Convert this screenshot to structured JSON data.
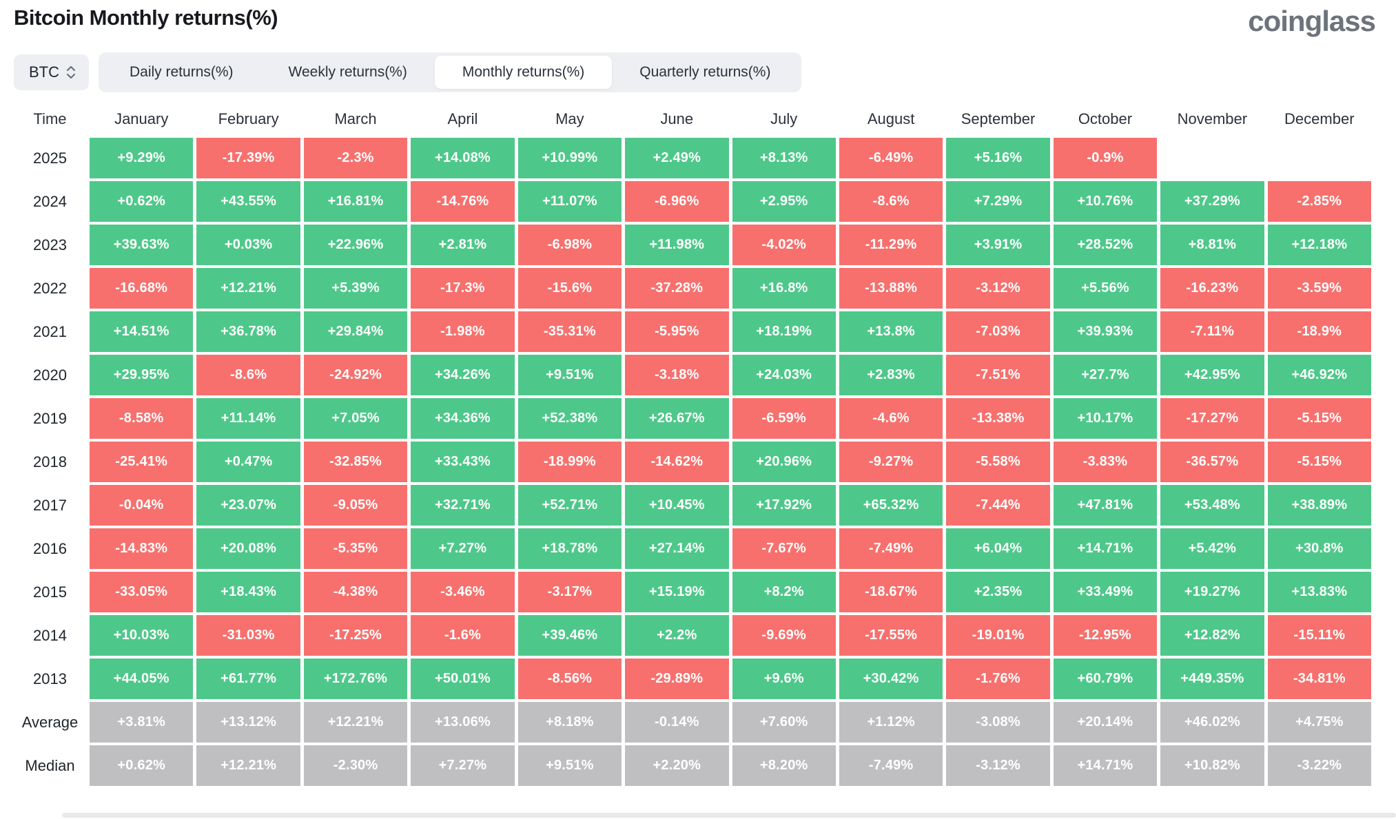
{
  "header": {
    "title": "Bitcoin Monthly returns(%)",
    "logo": "coinglass"
  },
  "controls": {
    "coin_selector": {
      "value": "BTC",
      "icon": "chevron-up-down-icon"
    },
    "tabs": [
      {
        "label": "Daily returns(%)",
        "selected": false
      },
      {
        "label": "Weekly returns(%)",
        "selected": false
      },
      {
        "label": "Monthly returns(%)",
        "selected": true
      },
      {
        "label": "Quarterly returns(%)",
        "selected": false
      }
    ]
  },
  "colors": {
    "positive": "#4ec88a",
    "negative": "#f7706d",
    "summary": "#bfbfc1",
    "tab_bg": "#edeff2",
    "logo_gray": "#6d737b"
  },
  "chart_data": {
    "type": "heatmap",
    "title": "Bitcoin Monthly returns(%)",
    "unit": "percent",
    "legend_position": "none",
    "columns": [
      "Time",
      "January",
      "February",
      "March",
      "April",
      "May",
      "June",
      "July",
      "August",
      "September",
      "October",
      "November",
      "December"
    ],
    "rows": [
      {
        "label": "2025",
        "summary": false,
        "values": [
          "+9.29%",
          "-17.39%",
          "-2.3%",
          "+14.08%",
          "+10.99%",
          "+2.49%",
          "+8.13%",
          "-6.49%",
          "+5.16%",
          "-0.9%",
          "",
          ""
        ]
      },
      {
        "label": "2024",
        "summary": false,
        "values": [
          "+0.62%",
          "+43.55%",
          "+16.81%",
          "-14.76%",
          "+11.07%",
          "-6.96%",
          "+2.95%",
          "-8.6%",
          "+7.29%",
          "+10.76%",
          "+37.29%",
          "-2.85%"
        ]
      },
      {
        "label": "2023",
        "summary": false,
        "values": [
          "+39.63%",
          "+0.03%",
          "+22.96%",
          "+2.81%",
          "-6.98%",
          "+11.98%",
          "-4.02%",
          "-11.29%",
          "+3.91%",
          "+28.52%",
          "+8.81%",
          "+12.18%"
        ]
      },
      {
        "label": "2022",
        "summary": false,
        "values": [
          "-16.68%",
          "+12.21%",
          "+5.39%",
          "-17.3%",
          "-15.6%",
          "-37.28%",
          "+16.8%",
          "-13.88%",
          "-3.12%",
          "+5.56%",
          "-16.23%",
          "-3.59%"
        ]
      },
      {
        "label": "2021",
        "summary": false,
        "values": [
          "+14.51%",
          "+36.78%",
          "+29.84%",
          "-1.98%",
          "-35.31%",
          "-5.95%",
          "+18.19%",
          "+13.8%",
          "-7.03%",
          "+39.93%",
          "-7.11%",
          "-18.9%"
        ]
      },
      {
        "label": "2020",
        "summary": false,
        "values": [
          "+29.95%",
          "-8.6%",
          "-24.92%",
          "+34.26%",
          "+9.51%",
          "-3.18%",
          "+24.03%",
          "+2.83%",
          "-7.51%",
          "+27.7%",
          "+42.95%",
          "+46.92%"
        ]
      },
      {
        "label": "2019",
        "summary": false,
        "values": [
          "-8.58%",
          "+11.14%",
          "+7.05%",
          "+34.36%",
          "+52.38%",
          "+26.67%",
          "-6.59%",
          "-4.6%",
          "-13.38%",
          "+10.17%",
          "-17.27%",
          "-5.15%"
        ]
      },
      {
        "label": "2018",
        "summary": false,
        "values": [
          "-25.41%",
          "+0.47%",
          "-32.85%",
          "+33.43%",
          "-18.99%",
          "-14.62%",
          "+20.96%",
          "-9.27%",
          "-5.58%",
          "-3.83%",
          "-36.57%",
          "-5.15%"
        ]
      },
      {
        "label": "2017",
        "summary": false,
        "values": [
          "-0.04%",
          "+23.07%",
          "-9.05%",
          "+32.71%",
          "+52.71%",
          "+10.45%",
          "+17.92%",
          "+65.32%",
          "-7.44%",
          "+47.81%",
          "+53.48%",
          "+38.89%"
        ]
      },
      {
        "label": "2016",
        "summary": false,
        "values": [
          "-14.83%",
          "+20.08%",
          "-5.35%",
          "+7.27%",
          "+18.78%",
          "+27.14%",
          "-7.67%",
          "-7.49%",
          "+6.04%",
          "+14.71%",
          "+5.42%",
          "+30.8%"
        ]
      },
      {
        "label": "2015",
        "summary": false,
        "values": [
          "-33.05%",
          "+18.43%",
          "-4.38%",
          "-3.46%",
          "-3.17%",
          "+15.19%",
          "+8.2%",
          "-18.67%",
          "+2.35%",
          "+33.49%",
          "+19.27%",
          "+13.83%"
        ]
      },
      {
        "label": "2014",
        "summary": false,
        "values": [
          "+10.03%",
          "-31.03%",
          "-17.25%",
          "-1.6%",
          "+39.46%",
          "+2.2%",
          "-9.69%",
          "-17.55%",
          "-19.01%",
          "-12.95%",
          "+12.82%",
          "-15.11%"
        ]
      },
      {
        "label": "2013",
        "summary": false,
        "values": [
          "+44.05%",
          "+61.77%",
          "+172.76%",
          "+50.01%",
          "-8.56%",
          "-29.89%",
          "+9.6%",
          "+30.42%",
          "-1.76%",
          "+60.79%",
          "+449.35%",
          "-34.81%"
        ]
      },
      {
        "label": "Average",
        "summary": true,
        "values": [
          "+3.81%",
          "+13.12%",
          "+12.21%",
          "+13.06%",
          "+8.18%",
          "-0.14%",
          "+7.60%",
          "+1.12%",
          "-3.08%",
          "+20.14%",
          "+46.02%",
          "+4.75%"
        ]
      },
      {
        "label": "Median",
        "summary": true,
        "values": [
          "+0.62%",
          "+12.21%",
          "-2.30%",
          "+7.27%",
          "+9.51%",
          "+2.20%",
          "+8.20%",
          "-7.49%",
          "-3.12%",
          "+14.71%",
          "+10.82%",
          "-3.22%"
        ]
      }
    ]
  }
}
